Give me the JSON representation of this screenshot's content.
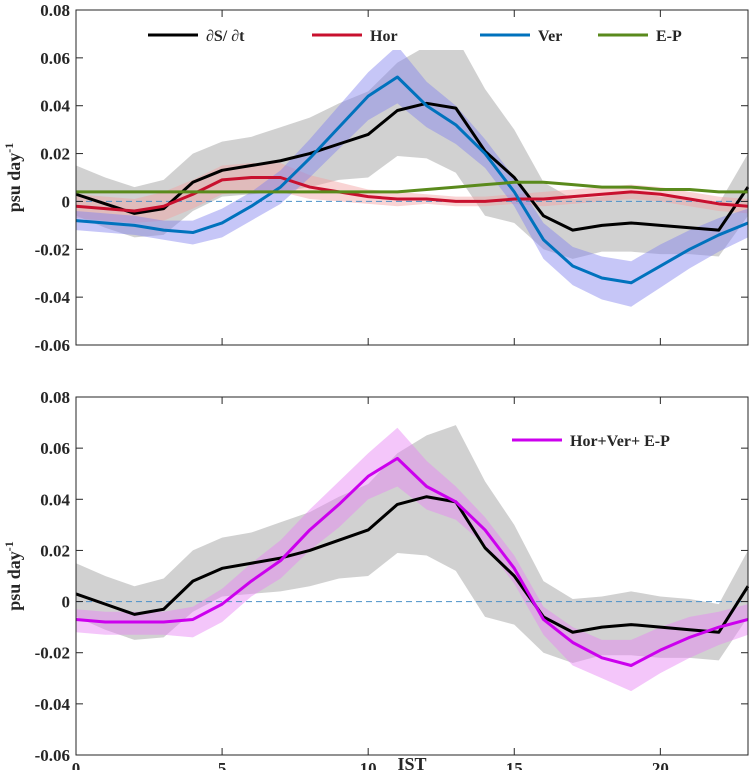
{
  "chart_data": [
    {
      "type": "line",
      "panel": "top",
      "xlabel": "",
      "ylabel": "psu day",
      "ylabel_superscript": "-1",
      "xlim": [
        0,
        23
      ],
      "ylim": [
        -0.06,
        0.08
      ],
      "xticks": [
        0,
        5,
        10,
        15,
        20
      ],
      "xtick_labels": [
        "",
        "",
        "",
        "",
        ""
      ],
      "yticks": [
        -0.06,
        -0.04,
        -0.02,
        0,
        0.02,
        0.04,
        0.06,
        0.08
      ],
      "ytick_labels": [
        "-0.06",
        "-0.04",
        "-0.02",
        "0",
        "0.02",
        "0.04",
        "0.06",
        "0.08"
      ],
      "zero_line": true,
      "legend_position": "top",
      "x": [
        0,
        1,
        2,
        3,
        4,
        5,
        6,
        7,
        8,
        9,
        10,
        11,
        12,
        13,
        14,
        15,
        16,
        17,
        18,
        19,
        20,
        21,
        22,
        23
      ],
      "series": [
        {
          "name": "∂S/ ∂t",
          "color": "#000000",
          "band_color": "#999999",
          "values": [
            0.003,
            -0.001,
            -0.005,
            -0.003,
            0.008,
            0.013,
            0.015,
            0.017,
            0.02,
            0.024,
            0.028,
            0.038,
            0.041,
            0.039,
            0.021,
            0.01,
            -0.006,
            -0.012,
            -0.01,
            -0.009,
            -0.01,
            -0.011,
            -0.012,
            0.006
          ],
          "upper": [
            0.015,
            0.01,
            0.006,
            0.009,
            0.02,
            0.025,
            0.027,
            0.031,
            0.035,
            0.041,
            0.046,
            0.058,
            0.065,
            0.069,
            0.047,
            0.03,
            0.008,
            0.001,
            0.002,
            0.004,
            0.002,
            0.001,
            -0.001,
            0.02
          ],
          "lower": [
            -0.006,
            -0.011,
            -0.015,
            -0.014,
            -0.004,
            0.002,
            0.003,
            0.004,
            0.006,
            0.009,
            0.01,
            0.019,
            0.018,
            0.012,
            -0.006,
            -0.009,
            -0.02,
            -0.024,
            -0.021,
            -0.021,
            -0.022,
            -0.022,
            -0.023,
            -0.006
          ]
        },
        {
          "name": "Hor",
          "color": "#c8102e",
          "band_color": "#f2a0a0",
          "values": [
            -0.002,
            -0.003,
            -0.004,
            -0.002,
            0.003,
            0.009,
            0.01,
            0.01,
            0.006,
            0.004,
            0.002,
            0.001,
            0.001,
            0.0,
            0.0,
            0.001,
            0.001,
            0.002,
            0.003,
            0.004,
            0.003,
            0.001,
            -0.001,
            -0.002
          ],
          "upper": [
            0.003,
            0.002,
            0.001,
            0.004,
            0.009,
            0.015,
            0.016,
            0.016,
            0.011,
            0.008,
            0.005,
            0.004,
            0.003,
            0.002,
            0.002,
            0.003,
            0.004,
            0.005,
            0.006,
            0.007,
            0.006,
            0.004,
            0.002,
            0.001
          ],
          "lower": [
            -0.007,
            -0.008,
            -0.009,
            -0.008,
            -0.003,
            0.003,
            0.004,
            0.004,
            0.001,
            0.0,
            -0.001,
            -0.002,
            -0.001,
            -0.002,
            -0.002,
            -0.001,
            -0.002,
            -0.001,
            0.0,
            0.001,
            0.0,
            -0.002,
            -0.004,
            -0.005
          ]
        },
        {
          "name": "Ver",
          "color": "#0072bd",
          "band_color": "#8080ee",
          "values": [
            -0.008,
            -0.009,
            -0.01,
            -0.012,
            -0.013,
            -0.009,
            -0.002,
            0.006,
            0.018,
            0.031,
            0.044,
            0.052,
            0.04,
            0.032,
            0.02,
            0.004,
            -0.016,
            -0.027,
            -0.032,
            -0.034,
            -0.027,
            -0.02,
            -0.014,
            -0.009
          ],
          "upper": [
            -0.004,
            -0.005,
            -0.006,
            -0.008,
            -0.008,
            -0.003,
            0.004,
            0.013,
            0.026,
            0.04,
            0.054,
            0.065,
            0.05,
            0.04,
            0.026,
            0.01,
            -0.009,
            -0.019,
            -0.023,
            -0.025,
            -0.018,
            -0.012,
            -0.007,
            -0.003
          ],
          "lower": [
            -0.012,
            -0.013,
            -0.014,
            -0.016,
            -0.018,
            -0.015,
            -0.008,
            -0.001,
            0.01,
            0.022,
            0.034,
            0.041,
            0.031,
            0.024,
            0.014,
            -0.002,
            -0.024,
            -0.035,
            -0.041,
            -0.044,
            -0.036,
            -0.028,
            -0.021,
            -0.015
          ]
        },
        {
          "name": "E-P",
          "color": "#5a8a1c",
          "values": [
            0.004,
            0.004,
            0.004,
            0.004,
            0.004,
            0.004,
            0.004,
            0.004,
            0.004,
            0.004,
            0.004,
            0.004,
            0.005,
            0.006,
            0.007,
            0.008,
            0.008,
            0.007,
            0.006,
            0.006,
            0.005,
            0.005,
            0.004,
            0.004
          ]
        }
      ]
    },
    {
      "type": "line",
      "panel": "bottom",
      "xlabel": "IST",
      "ylabel": "psu day",
      "ylabel_superscript": "-1",
      "xlim": [
        0,
        23
      ],
      "ylim": [
        -0.06,
        0.08
      ],
      "xticks": [
        0,
        5,
        10,
        15,
        20
      ],
      "xtick_labels": [
        "0",
        "5",
        "10",
        "15",
        "20"
      ],
      "yticks": [
        -0.06,
        -0.04,
        -0.02,
        0,
        0.02,
        0.04,
        0.06,
        0.08
      ],
      "ytick_labels": [
        "-0.06",
        "-0.04",
        "-0.02",
        "0",
        "0.02",
        "0.04",
        "0.06",
        "0.08"
      ],
      "zero_line": true,
      "legend_position": "top-right",
      "x": [
        0,
        1,
        2,
        3,
        4,
        5,
        6,
        7,
        8,
        9,
        10,
        11,
        12,
        13,
        14,
        15,
        16,
        17,
        18,
        19,
        20,
        21,
        22,
        23
      ],
      "series": [
        {
          "name": "∂S/ ∂t",
          "color": "#000000",
          "band_color": "#999999",
          "in_legend": false,
          "values": [
            0.003,
            -0.001,
            -0.005,
            -0.003,
            0.008,
            0.013,
            0.015,
            0.017,
            0.02,
            0.024,
            0.028,
            0.038,
            0.041,
            0.039,
            0.021,
            0.01,
            -0.006,
            -0.012,
            -0.01,
            -0.009,
            -0.01,
            -0.011,
            -0.012,
            0.006
          ],
          "upper": [
            0.015,
            0.01,
            0.006,
            0.009,
            0.02,
            0.025,
            0.027,
            0.031,
            0.035,
            0.041,
            0.046,
            0.058,
            0.065,
            0.069,
            0.047,
            0.03,
            0.008,
            0.001,
            0.002,
            0.004,
            0.002,
            0.001,
            -0.001,
            0.02
          ],
          "lower": [
            -0.006,
            -0.011,
            -0.015,
            -0.014,
            -0.004,
            0.002,
            0.003,
            0.004,
            0.006,
            0.009,
            0.01,
            0.019,
            0.018,
            0.012,
            -0.006,
            -0.009,
            -0.02,
            -0.024,
            -0.021,
            -0.021,
            -0.022,
            -0.022,
            -0.023,
            -0.006
          ]
        },
        {
          "name": "Hor+Ver+ E-P",
          "color": "#cc00ee",
          "band_color": "#e680f5",
          "in_legend": true,
          "values": [
            -0.007,
            -0.008,
            -0.008,
            -0.008,
            -0.007,
            -0.001,
            0.008,
            0.016,
            0.028,
            0.038,
            0.049,
            0.056,
            0.045,
            0.039,
            0.028,
            0.013,
            -0.007,
            -0.016,
            -0.022,
            -0.025,
            -0.019,
            -0.014,
            -0.01,
            -0.007
          ],
          "upper": [
            -0.003,
            -0.004,
            -0.004,
            -0.004,
            -0.002,
            0.005,
            0.015,
            0.024,
            0.036,
            0.047,
            0.058,
            0.068,
            0.055,
            0.045,
            0.033,
            0.018,
            -0.002,
            -0.01,
            -0.015,
            -0.015,
            -0.01,
            -0.006,
            -0.004,
            -0.001
          ],
          "lower": [
            -0.012,
            -0.013,
            -0.013,
            -0.013,
            -0.014,
            -0.008,
            0.002,
            0.009,
            0.02,
            0.029,
            0.04,
            0.045,
            0.036,
            0.032,
            0.022,
            0.007,
            -0.013,
            -0.025,
            -0.03,
            -0.035,
            -0.028,
            -0.022,
            -0.017,
            -0.013
          ]
        }
      ]
    }
  ]
}
